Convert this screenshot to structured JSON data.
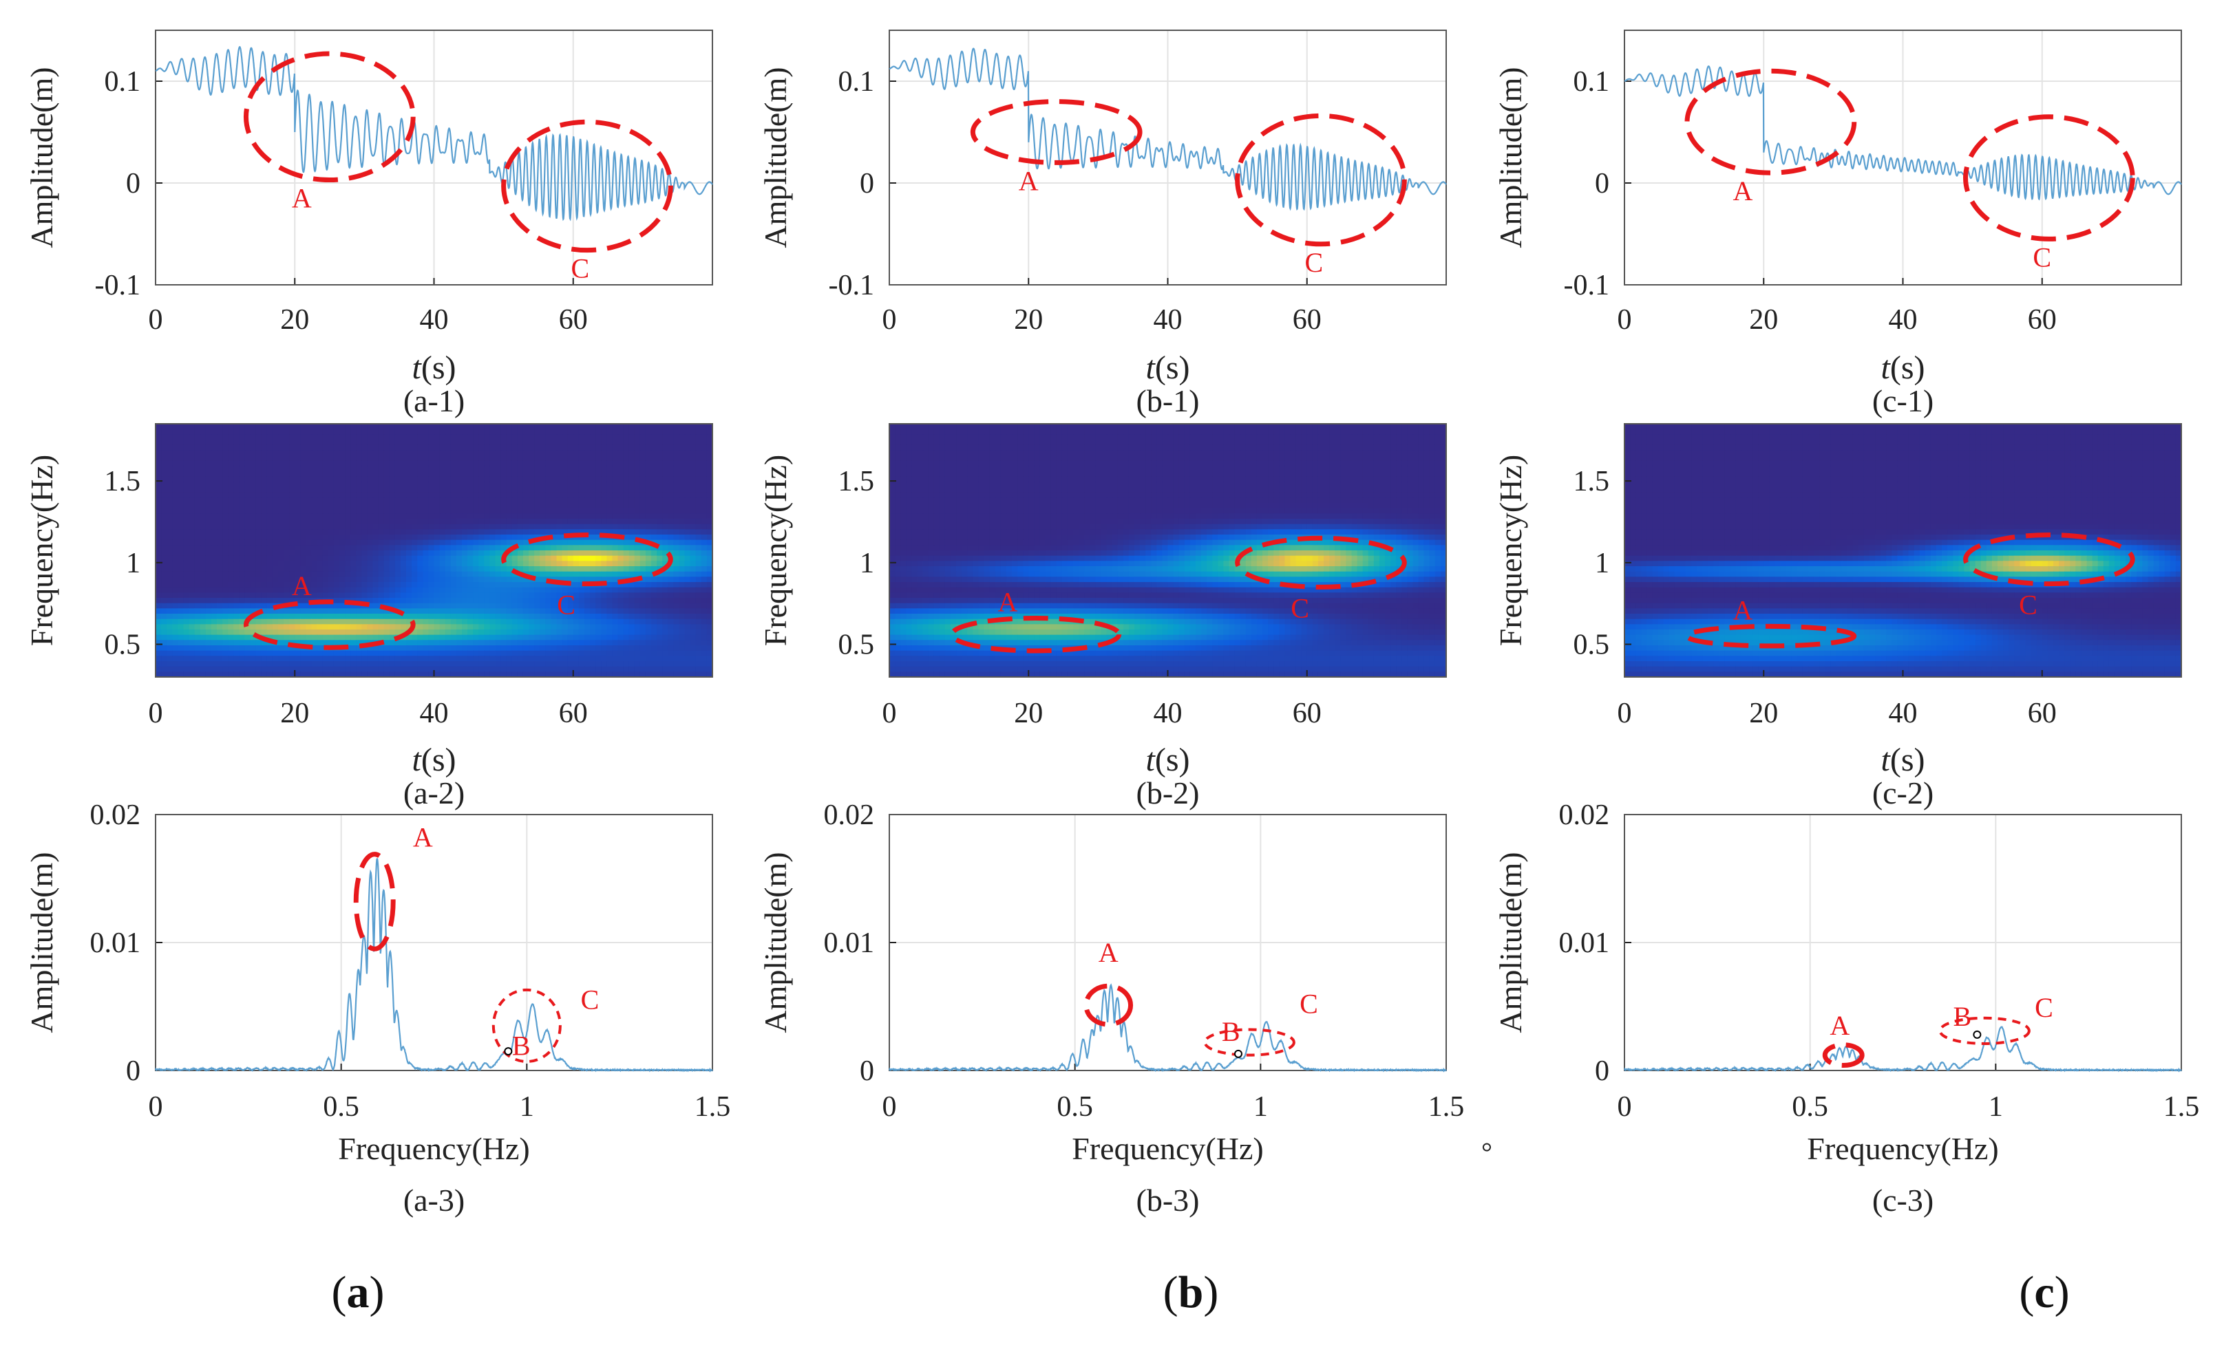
{
  "figure": {
    "columns": [
      {
        "column_label_prefix": "(",
        "column_label_letter": "a",
        "column_label_suffix": ")",
        "panels": [
          {
            "label": "(a-1)",
            "type": "line",
            "y_axis_label": "Amplitude(m)",
            "x_axis_label_italic": "t",
            "x_axis_label_rest": "(s)"
          },
          {
            "label": "(a-2)",
            "type": "heatmap",
            "y_axis_label": "Frequency(Hz)",
            "x_axis_label_italic": "t",
            "x_axis_label_rest": "(s)"
          },
          {
            "label": "(a-3)",
            "type": "line",
            "y_axis_label": "Amplitude(m)",
            "x_axis_label": "Frequency(Hz)"
          }
        ]
      },
      {
        "column_label_prefix": "(",
        "column_label_letter": "b",
        "column_label_suffix": ")",
        "panels": [
          {
            "label": "(b-1)",
            "type": "line",
            "y_axis_label": "Amplitude(m)",
            "x_axis_label_italic": "t",
            "x_axis_label_rest": "(s)"
          },
          {
            "label": "(b-2)",
            "type": "heatmap",
            "y_axis_label": "Frequency(Hz)",
            "x_axis_label_italic": "t",
            "x_axis_label_rest": "(s)"
          },
          {
            "label": "(b-3)",
            "type": "line",
            "y_axis_label": "Amplitude(m)",
            "x_axis_label": "Frequency(Hz)"
          }
        ]
      },
      {
        "column_label_prefix": "(",
        "column_label_letter": "c",
        "column_label_suffix": ")",
        "panels": [
          {
            "label": "(c-1)",
            "type": "line",
            "y_axis_label": "Amplitude(m)",
            "x_axis_label_italic": "t",
            "x_axis_label_rest": "(s)"
          },
          {
            "label": "(c-2)",
            "type": "heatmap",
            "y_axis_label": "Frequency(Hz)",
            "x_axis_label_italic": "t",
            "x_axis_label_rest": "(s)"
          },
          {
            "label": "(c-3)",
            "type": "line",
            "y_axis_label": "Amplitude(m)",
            "x_axis_label": "Frequency(Hz)"
          }
        ]
      }
    ],
    "colors": {
      "line": "#5a9fd0",
      "annotation": "#e8191c",
      "axis": "#222222",
      "grid": "#e3e3e3"
    }
  },
  "chart_data": [
    {
      "row": "time-history",
      "type": "line",
      "x_ticks": [
        "0",
        "20",
        "40",
        "60"
      ],
      "y_ticks": [
        "-0.1",
        "0",
        "0.1"
      ],
      "xlim": [
        0,
        80
      ],
      "ylim": [
        -0.1,
        0.15
      ],
      "panels": [
        {
          "id": "a-1",
          "pre_jump_mean": 0.11,
          "post_jump_mean": 0.05,
          "osc_amp_pre": 0.022,
          "osc_amp_post": 0.042,
          "burst_amp": 0.05,
          "decay": 0.055,
          "jump_t": 20,
          "annotations": [
            {
              "label": "A",
              "cx": 25,
              "cy": 0.065,
              "rx": 12,
              "ry": 0.062
            },
            {
              "label": "C",
              "cx": 62,
              "cy": -0.003,
              "rx": 12,
              "ry": 0.063
            }
          ]
        },
        {
          "id": "b-1",
          "pre_jump_mean": 0.112,
          "post_jump_mean": 0.04,
          "osc_amp_pre": 0.018,
          "osc_amp_post": 0.028,
          "burst_amp": 0.038,
          "decay": 0.065,
          "jump_t": 20,
          "annotations": [
            {
              "label": "A",
              "cx": 24,
              "cy": 0.05,
              "rx": 12,
              "ry": 0.03
            },
            {
              "label": "C",
              "cx": 62,
              "cy": 0.003,
              "rx": 12,
              "ry": 0.063
            }
          ]
        },
        {
          "id": "c-1",
          "pre_jump_mean": 0.1,
          "post_jump_mean": 0.03,
          "osc_amp_pre": 0.012,
          "osc_amp_post": 0.012,
          "burst_amp": 0.026,
          "decay": 0.12,
          "jump_t": 20,
          "annotations": [
            {
              "label": "A",
              "cx": 21,
              "cy": 0.06,
              "rx": 12,
              "ry": 0.05
            },
            {
              "label": "C",
              "cx": 61,
              "cy": 0.005,
              "rx": 12,
              "ry": 0.06
            }
          ]
        }
      ]
    },
    {
      "row": "time-frequency",
      "type": "heatmap",
      "x_ticks": [
        "0",
        "20",
        "40",
        "60"
      ],
      "y_ticks": [
        "0.5",
        "1",
        "1.5"
      ],
      "xlim": [
        0,
        80
      ],
      "ylim": [
        0.3,
        1.85
      ],
      "panels": [
        {
          "id": "a-2",
          "blobs": [
            {
              "t": 25,
              "f": 0.6,
              "st": 22,
              "sf": 0.07,
              "amp": 0.95
            },
            {
              "t": 62,
              "f": 1.02,
              "st": 12,
              "sf": 0.08,
              "amp": 1.0
            },
            {
              "t": 47,
              "f": 0.8,
              "st": 10,
              "sf": 0.1,
              "amp": 0.25
            }
          ],
          "annotations": [
            {
              "label": "A",
              "cx": 25,
              "cy": 0.62,
              "rx": 12,
              "ry": 0.14
            },
            {
              "label": "C",
              "cx": 62,
              "cy": 1.02,
              "rx": 12,
              "ry": 0.15
            }
          ]
        },
        {
          "id": "b-2",
          "blobs": [
            {
              "t": 22,
              "f": 0.6,
              "st": 18,
              "sf": 0.07,
              "amp": 0.8
            },
            {
              "t": 60,
              "f": 1.02,
              "st": 11,
              "sf": 0.09,
              "amp": 0.95
            },
            {
              "t": 35,
              "f": 0.95,
              "st": 16,
              "sf": 0.05,
              "amp": 0.25
            }
          ],
          "annotations": [
            {
              "label": "A",
              "cx": 21,
              "cy": 0.56,
              "rx": 12,
              "ry": 0.1
            },
            {
              "label": "C",
              "cx": 62,
              "cy": 1.0,
              "rx": 12,
              "ry": 0.15
            }
          ]
        },
        {
          "id": "c-2",
          "blobs": [
            {
              "t": 22,
              "f": 0.55,
              "st": 18,
              "sf": 0.08,
              "amp": 0.4
            },
            {
              "t": 60,
              "f": 1.0,
              "st": 10,
              "sf": 0.07,
              "amp": 0.9
            },
            {
              "t": 32,
              "f": 0.95,
              "st": 22,
              "sf": 0.04,
              "amp": 0.3
            }
          ],
          "annotations": [
            {
              "label": "A",
              "cx": 21,
              "cy": 0.55,
              "rx": 12,
              "ry": 0.06
            },
            {
              "label": "C",
              "cx": 61,
              "cy": 1.02,
              "rx": 12,
              "ry": 0.15
            }
          ]
        }
      ]
    },
    {
      "row": "spectrum",
      "type": "line",
      "x_ticks": [
        "0",
        "0.5",
        "1",
        "1.5"
      ],
      "y_ticks": [
        "0",
        "0.01",
        "0.02"
      ],
      "xlim": [
        0,
        1.5
      ],
      "ylim": [
        0,
        0.02
      ],
      "panels": [
        {
          "id": "a-3",
          "peak_A": 0.0165,
          "peak_C": 0.0052,
          "marker_B": [
            0.95,
            0.0015
          ],
          "annotations": [
            {
              "label": "A",
              "cx": 0.59,
              "cy": 0.0132,
              "rx": 0.05,
              "ry": 0.0037,
              "label_x": 0.72,
              "label_y": 0.0175
            },
            {
              "label": "C",
              "cx": 1.0,
              "cy": 0.0035,
              "rx": 0.09,
              "ry": 0.0028,
              "label_x": 1.17,
              "label_y": 0.0048,
              "dashed_thin": true
            },
            {
              "label": "B",
              "cx": 0,
              "cy": 0,
              "rx": 0,
              "ry": 0,
              "label_x": 0.985,
              "label_y": 0.0012,
              "text_only": true
            }
          ]
        },
        {
          "id": "b-3",
          "peak_A": 0.0066,
          "peak_C": 0.0038,
          "marker_B": [
            0.94,
            0.0013
          ],
          "annotations": [
            {
              "label": "A",
              "cx": 0.59,
              "cy": 0.0051,
              "rx": 0.06,
              "ry": 0.0015,
              "label_x": 0.59,
              "label_y": 0.0085
            },
            {
              "label": "C",
              "cx": 0.97,
              "cy": 0.0022,
              "rx": 0.12,
              "ry": 0.001,
              "label_x": 1.13,
              "label_y": 0.0045,
              "dashed_thin": true
            },
            {
              "label": "B",
              "cx": 0,
              "cy": 0,
              "rx": 0,
              "ry": 0,
              "label_x": 0.92,
              "label_y": 0.0023,
              "text_only": true
            }
          ]
        },
        {
          "id": "c-3",
          "peak_A": 0.0018,
          "peak_C": 0.0034,
          "marker_B": [
            0.95,
            0.0028
          ],
          "annotations": [
            {
              "label": "A",
              "cx": 0.59,
              "cy": 0.0012,
              "rx": 0.05,
              "ry": 0.0008,
              "label_x": 0.58,
              "label_y": 0.0028
            },
            {
              "label": "C",
              "cx": 0.97,
              "cy": 0.0031,
              "rx": 0.12,
              "ry": 0.001,
              "label_x": 1.13,
              "label_y": 0.0042,
              "dashed_thin": true
            },
            {
              "label": "B",
              "cx": 0,
              "cy": 0,
              "rx": 0,
              "ry": 0,
              "label_x": 0.91,
              "label_y": 0.0035,
              "text_only": true
            }
          ]
        }
      ]
    }
  ],
  "stray_marks": [
    {
      "symbol": "°"
    }
  ]
}
